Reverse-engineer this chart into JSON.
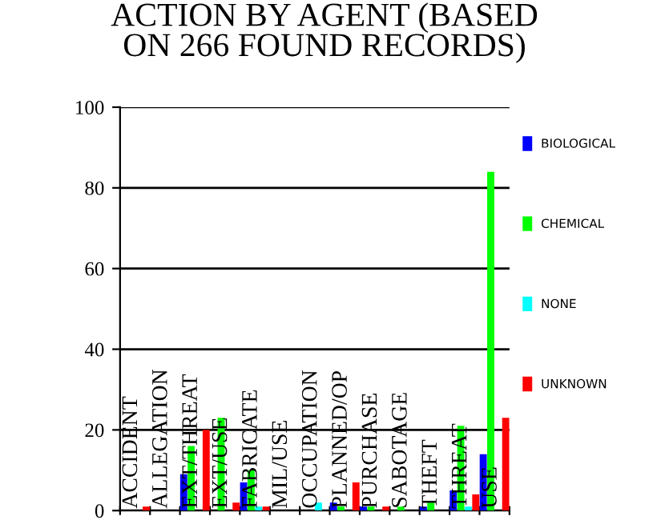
{
  "chart_data": {
    "type": "bar",
    "title": "ACTION BY AGENT (BASED\nON 266 FOUND RECORDS)",
    "categories": [
      "ACCIDENT",
      "ALLEGATION",
      "EXT/THREAT",
      "EXT/USE",
      "FABRICATE",
      "MIL/USE",
      "OCCUPATION",
      "PLANNED/OP",
      "PURCHASE",
      "SABOTAGE",
      "THEFT",
      "THREAT",
      "USE"
    ],
    "series": [
      {
        "name": "BIOLOGICAL",
        "color": "#0000ff",
        "values": [
          0,
          0,
          9,
          0,
          7,
          0,
          0,
          2,
          1,
          0,
          1,
          5,
          14
        ]
      },
      {
        "name": "CHEMICAL",
        "color": "#00ff00",
        "values": [
          0,
          0,
          16,
          23,
          10,
          0,
          0,
          1,
          1,
          1,
          2,
          21,
          84
        ]
      },
      {
        "name": "NONE",
        "color": "#00ffff",
        "values": [
          0,
          0,
          0,
          0,
          1,
          0,
          2,
          0,
          0,
          0,
          0,
          1,
          0
        ]
      },
      {
        "name": "UNKNOWN",
        "color": "#ff0000",
        "values": [
          1,
          0,
          20,
          2,
          1,
          0,
          0,
          7,
          1,
          0,
          0,
          4,
          23
        ]
      }
    ],
    "ylim": [
      0,
      100
    ],
    "yticks": [
      0,
      20,
      40,
      60,
      80,
      100
    ],
    "grid": "y",
    "legend": "right"
  }
}
